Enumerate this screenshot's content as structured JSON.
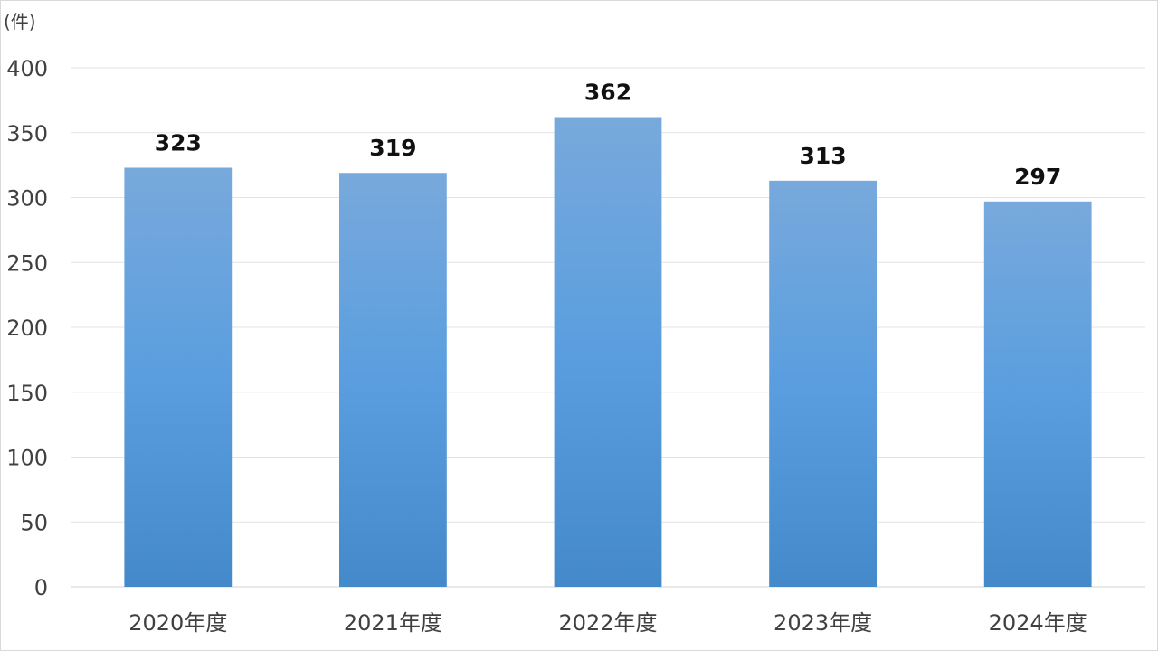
{
  "chart_data": {
    "type": "bar",
    "title": "",
    "xlabel": "",
    "ylabel": "",
    "unit_label": "(件)",
    "categories": [
      "2020年度",
      "2021年度",
      "2022年度",
      "2023年度",
      "2024年度"
    ],
    "values": [
      323,
      319,
      362,
      313,
      297
    ],
    "data_labels": [
      "323",
      "319",
      "362",
      "313",
      "297"
    ],
    "ylim": [
      0,
      400
    ],
    "yticks": [
      0,
      50,
      100,
      150,
      200,
      250,
      300,
      350,
      400
    ],
    "ytick_labels": [
      "0",
      "50",
      "100",
      "150",
      "200",
      "250",
      "300",
      "350",
      "400"
    ],
    "grid": true,
    "legend": "none",
    "colors": {
      "bar_top": "#78a9dc",
      "bar_mid": "#5a9edf",
      "bar_bottom": "#4489c9",
      "grid": "#e3e3e3",
      "axis_text": "#404040",
      "data_label": "#111111"
    }
  }
}
